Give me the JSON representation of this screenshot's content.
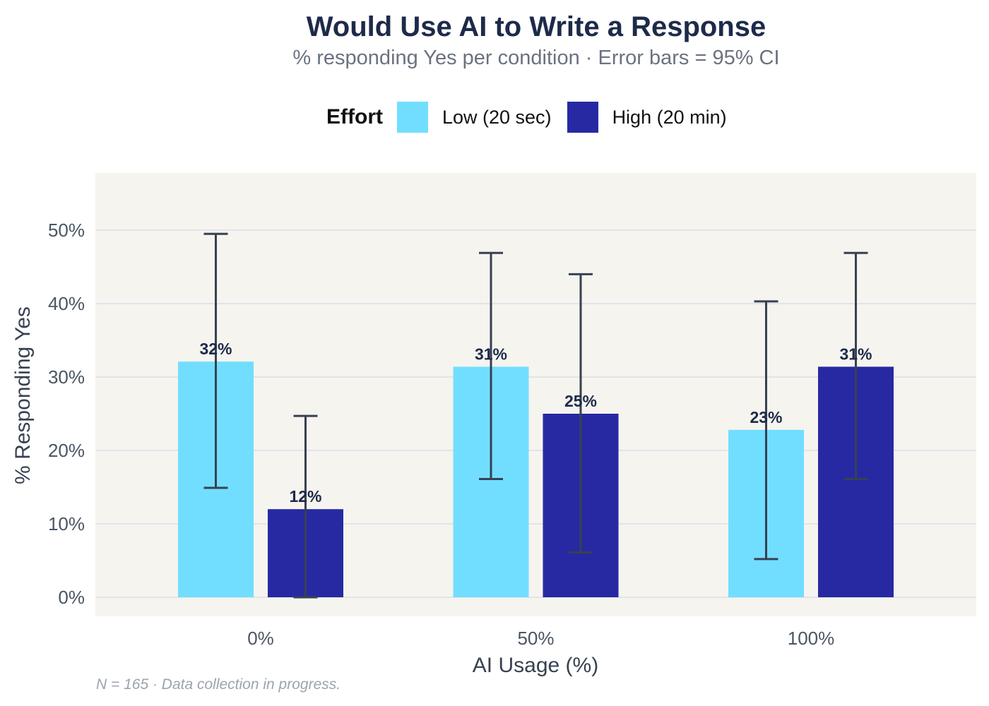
{
  "chart_data": {
    "type": "bar",
    "title": "Would Use AI to Write a Response",
    "subtitle": "% responding Yes per condition  ·  Error bars = 95% CI",
    "xlabel": "AI Usage (%)",
    "ylabel": "% Responding Yes",
    "categories": [
      "0%",
      "50%",
      "100%"
    ],
    "ylim": [
      -2.7,
      57.7
    ],
    "yticks": [
      "0%",
      "10%",
      "20%",
      "30%",
      "40%",
      "50%"
    ],
    "ytick_values": [
      0,
      10,
      20,
      30,
      40,
      50
    ],
    "grid": true,
    "legend_title": "Effort",
    "legend_position": "top",
    "series": [
      {
        "name": "Low (20 sec)",
        "color": "#72deff",
        "values": [
          32.1,
          31.4,
          22.8
        ],
        "labels": [
          "32%",
          "31%",
          "23%"
        ],
        "ci_low": [
          14.9,
          16.1,
          5.2
        ],
        "ci_high": [
          49.5,
          46.9,
          40.3
        ]
      },
      {
        "name": "High (20 min)",
        "color": "#2729a3",
        "values": [
          12.0,
          25.0,
          31.4
        ],
        "labels": [
          "12%",
          "25%",
          "31%"
        ],
        "ci_low": [
          0,
          6.1,
          16.1
        ],
        "ci_high": [
          24.7,
          44.0,
          46.9
        ]
      }
    ],
    "caption": "N = 165  ·  Data collection in progress."
  }
}
